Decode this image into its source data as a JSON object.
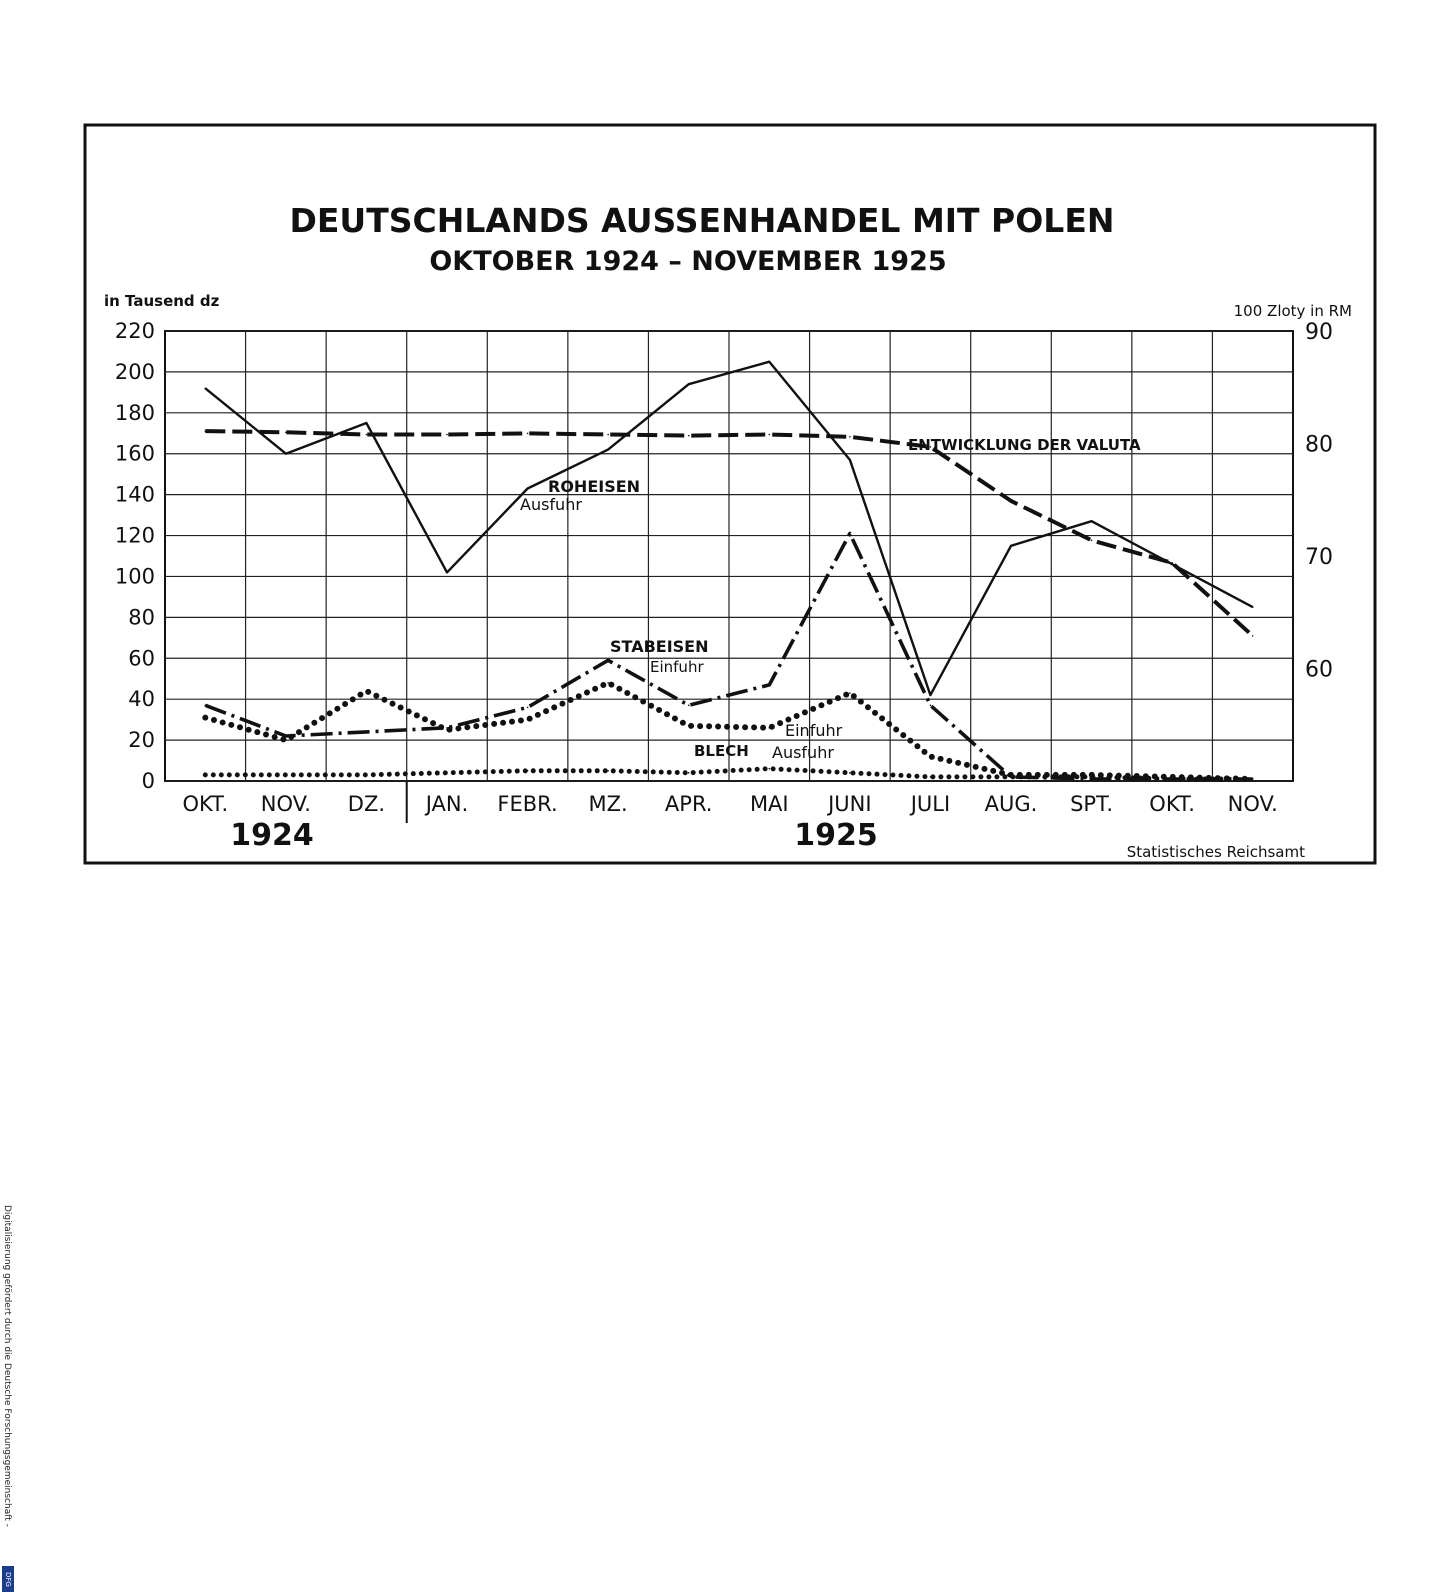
{
  "chart_data": {
    "type": "line",
    "title": "DEUTSCHLANDS AUSSENHANDEL MIT POLEN",
    "subtitle": "OKTOBER 1924 – NOVEMBER 1925",
    "ylabel_left": "in Tausend dz",
    "ylabel_right": "100 Zloty in RM",
    "ylim_left": [
      0,
      220
    ],
    "ylim_right": [
      50,
      90
    ],
    "yticks_left": [
      "0",
      "20",
      "40",
      "60",
      "80",
      "100",
      "120",
      "140",
      "160",
      "180",
      "200",
      "220"
    ],
    "yticks_right": [
      "60",
      "70",
      "80",
      "90"
    ],
    "categories": [
      "OKT.",
      "NOV.",
      "DZ.",
      "JAN.",
      "FEBR.",
      "MZ.",
      "APR.",
      "MAI",
      "JUNI",
      "JULI",
      "AUG.",
      "SPT.",
      "OKT.",
      "NOV."
    ],
    "years": [
      "1924",
      "1925"
    ],
    "source": "Statistisches Reichsamt",
    "grid": true,
    "series": [
      {
        "name": "ROHEISEN Ausfuhr",
        "label_line1": "ROHEISEN",
        "label_line2": "Ausfuhr",
        "axis": "left",
        "style": "solid",
        "values": [
          192,
          160,
          175,
          102,
          143,
          162,
          194,
          205,
          157,
          42,
          115,
          127,
          106,
          85
        ]
      },
      {
        "name": "ENTWICKLUNG DER VALUTA",
        "label": "ENTWICKLUNG DER VALUTA",
        "axis": "right",
        "style": "dashed",
        "values": [
          81.1,
          81.0,
          80.8,
          80.8,
          80.9,
          80.8,
          80.7,
          80.8,
          80.6,
          79.7,
          74.9,
          71.4,
          69.4,
          62.9
        ]
      },
      {
        "name": "STABEISEN Einfuhr",
        "label_line1": "STABEISEN",
        "label_line2": "Einfuhr",
        "axis": "left",
        "style": "dashdot",
        "values": [
          37,
          22,
          24,
          26,
          36,
          59,
          37,
          47,
          121,
          37,
          2,
          1,
          1,
          1
        ]
      },
      {
        "name": "BLECH Einfuhr",
        "label": "Einfuhr",
        "axis": "left",
        "style": "dotted-heavy",
        "values": [
          31,
          20,
          44,
          25,
          30,
          48,
          27,
          26,
          43,
          12,
          3,
          3,
          2,
          1
        ]
      },
      {
        "name": "BLECH Ausfuhr",
        "label_line1": "BLECH",
        "label_line2": "Ausfuhr",
        "axis": "left",
        "style": "dotted",
        "values": [
          3,
          3,
          3,
          4,
          5,
          5,
          4,
          6,
          4,
          2,
          2,
          2,
          1,
          1
        ]
      }
    ]
  },
  "sidebar": {
    "text": "Digitalisierung gefördert durch die Deutsche Forschungsgemeinschaft -",
    "logo": "DFG"
  }
}
